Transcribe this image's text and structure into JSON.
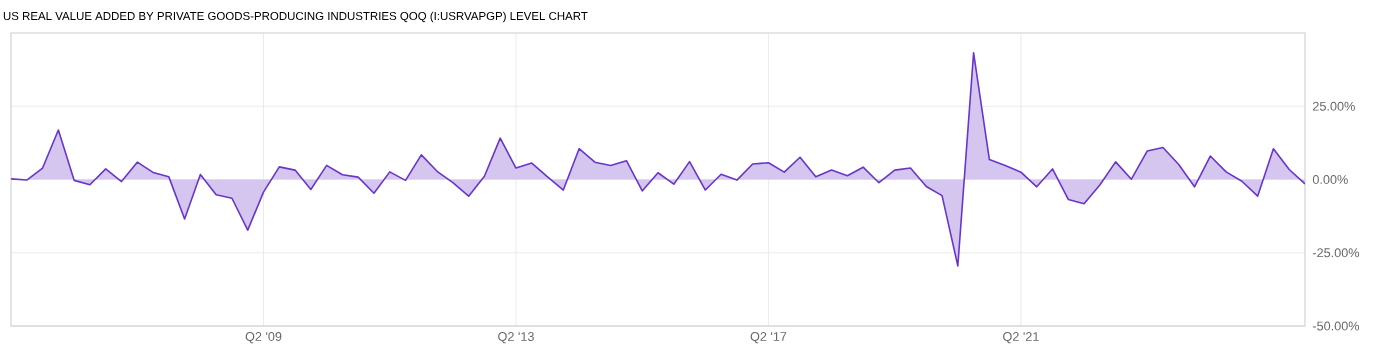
{
  "chart_data": {
    "type": "area",
    "title": "US REAL VALUE ADDED BY PRIVATE GOODS-PRODUCING INDUSTRIES QOQ (I:USRVAPGP) LEVEL CHART",
    "categories": [
      null,
      null,
      null,
      null,
      null,
      null,
      null,
      null,
      null,
      null,
      null,
      null,
      null,
      null,
      null,
      null,
      "Q2 '09",
      null,
      null,
      null,
      null,
      null,
      null,
      null,
      null,
      null,
      null,
      null,
      null,
      null,
      null,
      null,
      "Q2 '13",
      null,
      null,
      null,
      null,
      null,
      null,
      null,
      null,
      null,
      null,
      null,
      null,
      null,
      null,
      null,
      "Q2 '17",
      null,
      null,
      null,
      null,
      null,
      null,
      null,
      null,
      null,
      null,
      null,
      null,
      null,
      null,
      null,
      "Q2 '21",
      null,
      null,
      null,
      null,
      null,
      null,
      null,
      null,
      null,
      null,
      null,
      null,
      null,
      null,
      null,
      null,
      null,
      null
    ],
    "values": [
      0.2,
      -0.2,
      3.9,
      16.9,
      -0.3,
      -1.8,
      3.6,
      -0.7,
      5.9,
      2.4,
      0.9,
      -13.5,
      1.7,
      -5.2,
      -6.4,
      -17.3,
      -4.3,
      4.3,
      3.2,
      -3.4,
      4.8,
      1.6,
      0.8,
      -4.7,
      2.6,
      -0.3,
      8.4,
      2.8,
      -1.1,
      -5.7,
      1.1,
      14.1,
      3.9,
      5.6,
      0.9,
      -3.6,
      10.5,
      5.9,
      4.8,
      6.4,
      -3.9,
      2.3,
      -1.6,
      6.1,
      -3.6,
      1.8,
      -0.2,
      5.3,
      5.7,
      2.5,
      7.6,
      0.9,
      3.2,
      1.3,
      4.2,
      -1.1,
      3.2,
      3.9,
      -2.4,
      -5.5,
      -29.5,
      43.2,
      6.8,
      4.8,
      2.5,
      -2.5,
      3.6,
      -6.8,
      -8.3,
      -1.9,
      6.0,
      0.1,
      9.7,
      10.9,
      5.1,
      -2.5,
      8.0,
      2.6,
      -0.6,
      -5.7,
      10.5,
      3.4,
      -1.5
    ],
    "color": "#6a35c9",
    "ylim": [
      -50,
      50
    ],
    "yticks": [
      {
        "value": -50,
        "label": "-50.00%"
      },
      {
        "value": -25,
        "label": "-25.00%"
      },
      {
        "value": 0,
        "label": "0.00%"
      },
      {
        "value": 25,
        "label": "25.00%"
      }
    ],
    "grid": true
  }
}
